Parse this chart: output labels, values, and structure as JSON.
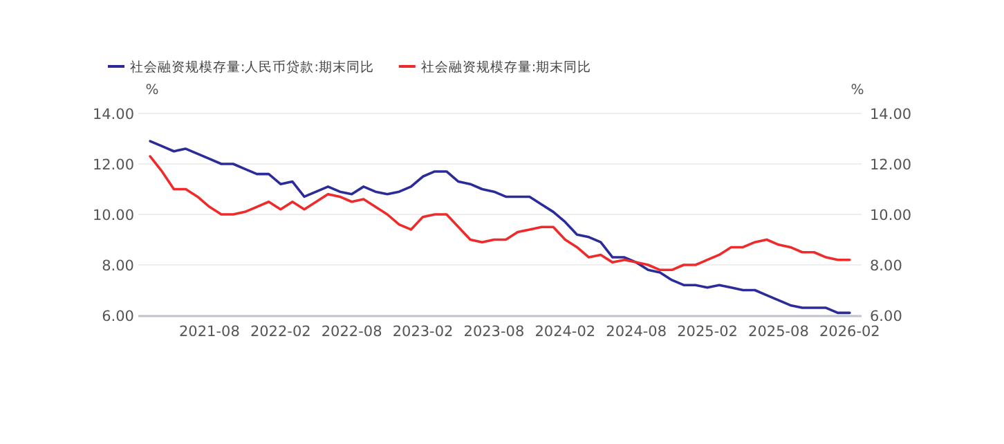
{
  "chart_data": {
    "type": "line",
    "x": [
      "2021-03",
      "2021-04",
      "2021-05",
      "2021-06",
      "2021-07",
      "2021-08",
      "2021-09",
      "2021-10",
      "2021-11",
      "2021-12",
      "2022-01",
      "2022-02",
      "2022-03",
      "2022-04",
      "2022-05",
      "2022-06",
      "2022-07",
      "2022-08",
      "2022-09",
      "2022-10",
      "2022-11",
      "2022-12",
      "2023-01",
      "2023-02",
      "2023-03",
      "2023-04",
      "2023-05",
      "2023-06",
      "2023-07",
      "2023-08",
      "2023-09",
      "2023-10",
      "2023-11",
      "2023-12",
      "2024-01",
      "2024-02",
      "2024-03",
      "2024-04",
      "2024-05",
      "2024-06",
      "2024-07",
      "2024-08",
      "2024-09",
      "2024-10",
      "2024-11",
      "2024-12",
      "2025-01",
      "2025-02",
      "2025-03",
      "2025-04",
      "2025-05",
      "2025-06",
      "2025-07",
      "2025-08",
      "2025-09",
      "2025-10",
      "2025-11",
      "2025-12",
      "2026-01",
      "2026-02"
    ],
    "series": [
      {
        "name": "社会融资规模存量:人民币贷款:期末同比",
        "color": "#2b2b9a",
        "values": [
          12.9,
          12.7,
          12.5,
          12.6,
          12.4,
          12.2,
          12.0,
          12.0,
          11.8,
          11.6,
          11.6,
          11.2,
          11.3,
          10.7,
          10.9,
          11.1,
          10.9,
          10.8,
          11.1,
          10.9,
          10.8,
          10.9,
          11.1,
          11.5,
          11.7,
          11.7,
          11.3,
          11.2,
          11.0,
          10.9,
          10.7,
          10.7,
          10.7,
          10.4,
          10.1,
          9.7,
          9.2,
          9.1,
          8.9,
          8.3,
          8.3,
          8.1,
          7.8,
          7.7,
          7.4,
          7.2,
          7.2,
          7.1,
          7.2,
          7.1,
          7.0,
          7.0,
          6.8,
          6.6,
          6.4,
          6.3,
          6.3,
          6.3,
          6.1,
          6.1
        ]
      },
      {
        "name": "社会融资规模存量:期末同比",
        "color": "#ee2a2a",
        "values": [
          12.3,
          11.7,
          11.0,
          11.0,
          10.7,
          10.3,
          10.0,
          10.0,
          10.1,
          10.3,
          10.5,
          10.2,
          10.5,
          10.2,
          10.5,
          10.8,
          10.7,
          10.5,
          10.6,
          10.3,
          10.0,
          9.6,
          9.4,
          9.9,
          10.0,
          10.0,
          9.5,
          9.0,
          8.9,
          9.0,
          9.0,
          9.3,
          9.4,
          9.5,
          9.5,
          9.0,
          8.7,
          8.3,
          8.4,
          8.1,
          8.2,
          8.1,
          8.0,
          7.8,
          7.8,
          8.0,
          8.0,
          8.2,
          8.4,
          8.7,
          8.7,
          8.9,
          9.0,
          8.8,
          8.7,
          8.5,
          8.5,
          8.3,
          8.2,
          8.2
        ]
      }
    ],
    "xlim": [
      "2021-02",
      "2026-03"
    ],
    "xticks": [
      "2021-08",
      "2022-02",
      "2022-08",
      "2023-02",
      "2023-08",
      "2024-02",
      "2024-08",
      "2025-02",
      "2025-08",
      "2026-02"
    ],
    "ylim": [
      6,
      14
    ],
    "yticks": [
      {
        "value": 6,
        "label": "6.00"
      },
      {
        "value": 8,
        "label": "8.00"
      },
      {
        "value": 10,
        "label": "10.00"
      },
      {
        "value": 12,
        "label": "12.00"
      },
      {
        "value": 14,
        "label": "14.00"
      }
    ],
    "y2lim": [
      6,
      14
    ],
    "y2ticks": [
      {
        "value": 6,
        "label": "6.00"
      },
      {
        "value": 8,
        "label": "8.00"
      },
      {
        "value": 10,
        "label": "10.00"
      },
      {
        "value": 12,
        "label": "12.00"
      },
      {
        "value": 14,
        "label": "14.00"
      }
    ],
    "ylabel": "%",
    "y2label": "%",
    "grid": "y",
    "legend": "top left"
  }
}
